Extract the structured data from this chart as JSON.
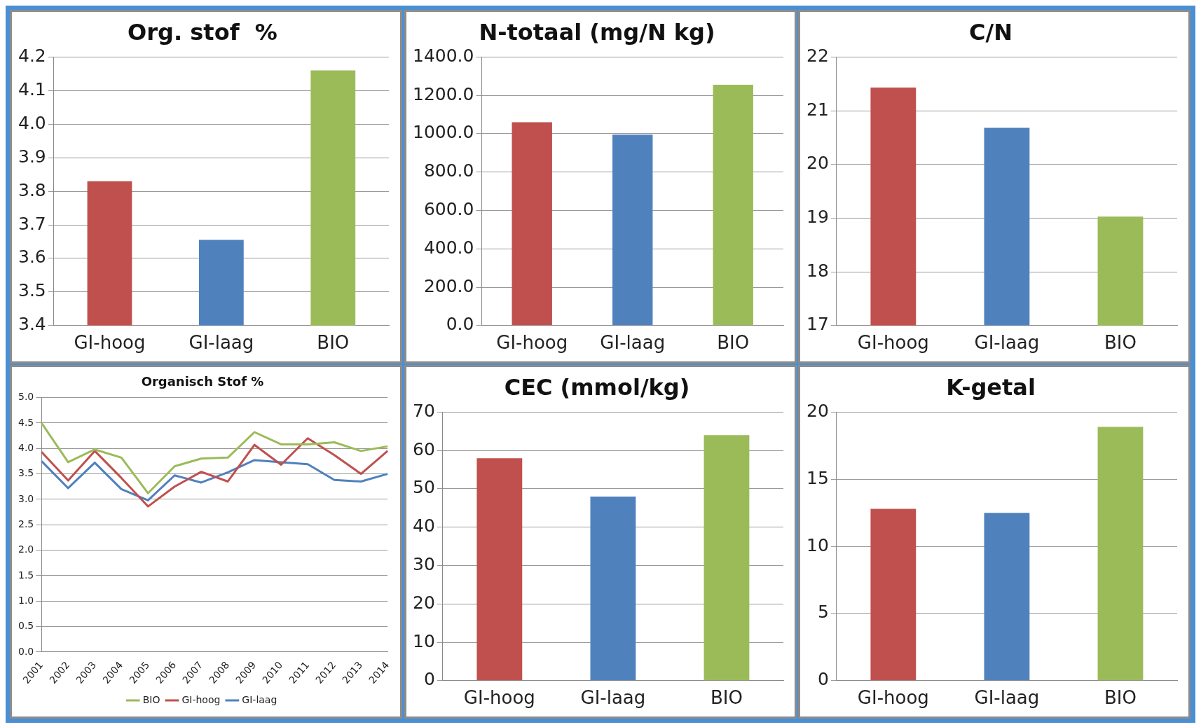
{
  "chart_data": [
    {
      "type": "bar",
      "title": "Org. stof  %",
      "categories": [
        "GI-hoog",
        "GI-laag",
        "BIO"
      ],
      "values": [
        3.83,
        3.655,
        4.16
      ],
      "colors": [
        "#c0504d",
        "#4f81bd",
        "#9bbb59"
      ],
      "ylim": [
        3.4,
        4.2
      ],
      "yticks": [
        3.4,
        3.5,
        3.6,
        3.7,
        3.8,
        3.9,
        {
          "value": 4.0,
          "label": "4.0"
        },
        4.1,
        4.2
      ],
      "grid": "y"
    },
    {
      "type": "bar",
      "title": "N-totaal (mg/N kg)",
      "categories": [
        "GI-hoog",
        "GI-laag",
        "BIO"
      ],
      "values": [
        1060,
        995,
        1255
      ],
      "colors": [
        "#c0504d",
        "#4f81bd",
        "#9bbb59"
      ],
      "ylim": [
        0,
        1400
      ],
      "yticks": [
        {
          "value": 0,
          "label": "0.0"
        },
        {
          "value": 200,
          "label": "200.0"
        },
        {
          "value": 400,
          "label": "400.0"
        },
        {
          "value": 600,
          "label": "600.0"
        },
        {
          "value": 800,
          "label": "800.0"
        },
        {
          "value": 1000,
          "label": "1000.0"
        },
        {
          "value": 1200,
          "label": "1200.0"
        },
        {
          "value": 1400,
          "label": "1400.0"
        }
      ],
      "grid": "y"
    },
    {
      "type": "bar",
      "title": "C/N",
      "categories": [
        "GI-hoog",
        "GI-laag",
        "BIO"
      ],
      "values": [
        21.43,
        20.68,
        19.03
      ],
      "colors": [
        "#c0504d",
        "#4f81bd",
        "#9bbb59"
      ],
      "ylim": [
        17,
        22
      ],
      "yticks": [
        17,
        18,
        19,
        20,
        21,
        22
      ],
      "grid": "y"
    },
    {
      "type": "line",
      "title": "Organisch Stof %",
      "categories": [
        "2001",
        "2002",
        "2003",
        "2004",
        "2005",
        "2006",
        "2007",
        "2008",
        "2009",
        "2010",
        "2011",
        "2012",
        "2013",
        "2014"
      ],
      "series": [
        {
          "name": "BIO",
          "color": "#9bbb59",
          "values": [
            4.5,
            3.73,
            3.98,
            3.82,
            3.12,
            3.65,
            3.8,
            3.82,
            4.32,
            4.08,
            4.08,
            4.12,
            3.95,
            4.04
          ]
        },
        {
          "name": "GI-hoog",
          "color": "#c0504d",
          "values": [
            3.93,
            3.37,
            3.95,
            3.42,
            2.86,
            3.25,
            3.54,
            3.35,
            4.07,
            3.68,
            4.2,
            3.87,
            3.5,
            3.95
          ]
        },
        {
          "name": "GI-laag",
          "color": "#4f81bd",
          "values": [
            3.75,
            3.22,
            3.72,
            3.2,
            2.98,
            3.47,
            3.33,
            3.53,
            3.77,
            3.73,
            3.69,
            3.38,
            3.35,
            3.5
          ]
        }
      ],
      "ylim": [
        0,
        5
      ],
      "yticks": [
        {
          "value": 0,
          "label": "0.0"
        },
        0.5,
        {
          "value": 1,
          "label": "1.0"
        },
        1.5,
        {
          "value": 2,
          "label": "2.0"
        },
        2.5,
        {
          "value": 3,
          "label": "3.0"
        },
        3.5,
        {
          "value": 4,
          "label": "4.0"
        },
        4.5,
        {
          "value": 5,
          "label": "5.0"
        }
      ],
      "grid": "y",
      "legend": "bottom",
      "marker": "none",
      "line_style": "solid"
    },
    {
      "type": "bar",
      "title": "CEC (mmol/kg)",
      "categories": [
        "GI-hoog",
        "GI-laag",
        "BIO"
      ],
      "values": [
        58,
        48,
        64
      ],
      "colors": [
        "#c0504d",
        "#4f81bd",
        "#9bbb59"
      ],
      "ylim": [
        0,
        70
      ],
      "yticks": [
        0,
        10,
        20,
        30,
        40,
        50,
        60,
        70
      ],
      "grid": "y"
    },
    {
      "type": "bar",
      "title": "K-getal",
      "categories": [
        "GI-hoog",
        "GI-laag",
        "BIO"
      ],
      "values": [
        12.8,
        12.5,
        18.9
      ],
      "colors": [
        "#c0504d",
        "#4f81bd",
        "#9bbb59"
      ],
      "ylim": [
        0,
        20
      ],
      "yticks": [
        0,
        5,
        10,
        15,
        20
      ],
      "grid": "y"
    }
  ]
}
